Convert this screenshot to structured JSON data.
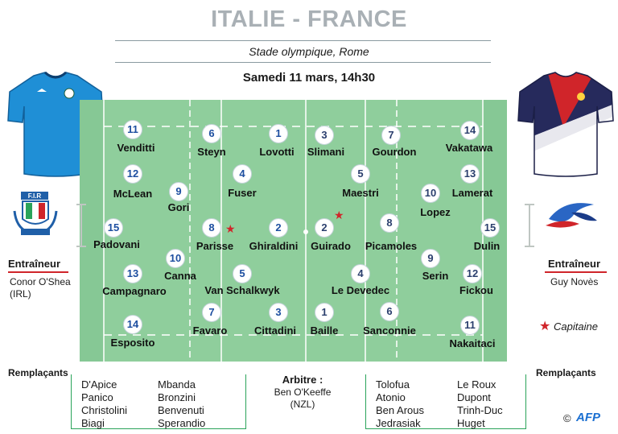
{
  "title": "ITALIE - FRANCE",
  "venue": "Stade olympique, Rome",
  "date": "Samedi 11 mars, 14h30",
  "italy": {
    "coach_label": "Entraîneur",
    "coach_name_1": "Conor O'Shea",
    "coach_name_2": "(IRL)",
    "subs_label": "Remplaçants",
    "subs": [
      "D'Apice",
      "Panico",
      "Christolini",
      "Biagi",
      "Mbanda",
      "Bronzini",
      "Benvenuti",
      "Sperandio"
    ],
    "players": [
      {
        "num": "11",
        "name": "Venditti"
      },
      {
        "num": "12",
        "name": "McLean"
      },
      {
        "num": "15",
        "name": "Padovani"
      },
      {
        "num": "13",
        "name": "Campagnaro"
      },
      {
        "num": "14",
        "name": "Esposito"
      },
      {
        "num": "9",
        "name": "Gori"
      },
      {
        "num": "10",
        "name": "Canna"
      },
      {
        "num": "6",
        "name": "Steyn"
      },
      {
        "num": "4",
        "name": "Fuser"
      },
      {
        "num": "8",
        "name": "Parisse"
      },
      {
        "num": "5",
        "name": "Van Schalkwyk"
      },
      {
        "num": "7",
        "name": "Favaro"
      },
      {
        "num": "1",
        "name": "Lovotti"
      },
      {
        "num": "2",
        "name": "Ghiraldini"
      },
      {
        "num": "3",
        "name": "Cittadini"
      }
    ]
  },
  "france": {
    "coach_label": "Entraîneur",
    "coach_name": "Guy Novès",
    "subs_label": "Remplaçants",
    "subs": [
      "Tolofua",
      "Atonio",
      "Ben Arous",
      "Jedrasiak",
      "Le Roux",
      "Dupont",
      "Trinh-Duc",
      "Huget"
    ],
    "players": [
      {
        "num": "3",
        "name": "Slimani"
      },
      {
        "num": "2",
        "name": "Guirado"
      },
      {
        "num": "1",
        "name": "Baille"
      },
      {
        "num": "7",
        "name": "Gourdon"
      },
      {
        "num": "5",
        "name": "Maestri"
      },
      {
        "num": "8",
        "name": "Picamoles"
      },
      {
        "num": "4",
        "name": "Le Devedec"
      },
      {
        "num": "6",
        "name": "Sanconnie"
      },
      {
        "num": "14",
        "name": "Vakatawa"
      },
      {
        "num": "10",
        "name": "Lopez"
      },
      {
        "num": "13",
        "name": "Lamerat"
      },
      {
        "num": "15",
        "name": "Dulin"
      },
      {
        "num": "9",
        "name": "Serin"
      },
      {
        "num": "12",
        "name": "Fickou"
      },
      {
        "num": "11",
        "name": "Nakaitaci"
      }
    ]
  },
  "referee": {
    "label": "Arbitre :",
    "name": "Ben O'Keeffe",
    "nationality": "(NZL)"
  },
  "captain_label": "Capitaine",
  "credit": "AFP",
  "logo_text": "F.I.R",
  "colors": {
    "pitch_light": "#8fce9c",
    "pitch_dark": "#82c591",
    "italy_blue": "#1f8fd6",
    "france_navy": "#262a5c",
    "france_red": "#d0252a",
    "accent_green": "#2aa35a"
  }
}
